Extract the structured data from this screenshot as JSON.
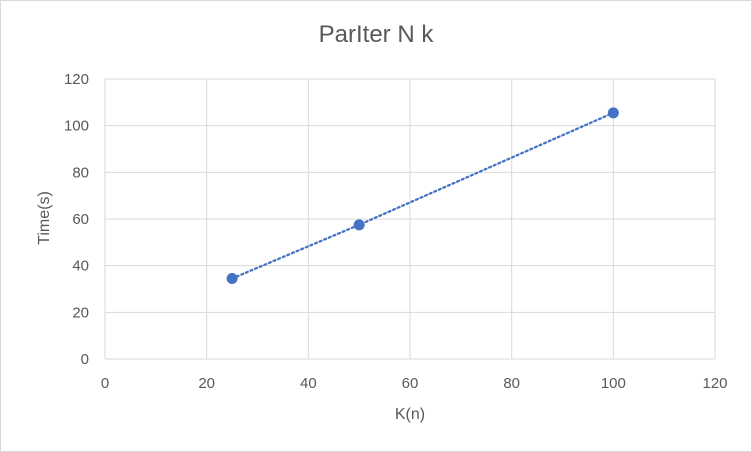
{
  "chart_data": {
    "type": "scatter",
    "title": "ParIter N k",
    "xlabel": "K(n)",
    "ylabel": "Time(s)",
    "xlim": [
      0,
      120
    ],
    "ylim": [
      0,
      120
    ],
    "x_ticks": [
      0,
      20,
      40,
      60,
      80,
      100,
      120
    ],
    "y_ticks": [
      0,
      20,
      40,
      60,
      80,
      100,
      120
    ],
    "grid": true,
    "legend": "none",
    "series": [
      {
        "x": [
          25,
          50,
          100
        ],
        "y": [
          34.5,
          57.5,
          105.5
        ],
        "color": "#4472C4",
        "line_style": "dotted"
      }
    ]
  }
}
